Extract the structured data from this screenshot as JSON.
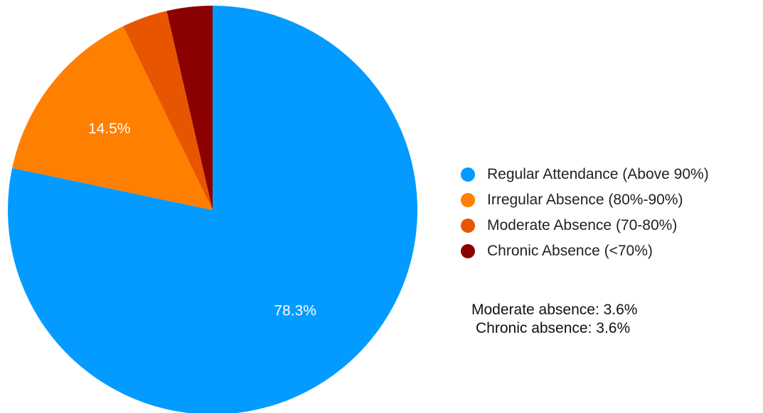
{
  "chart_data": {
    "type": "pie",
    "title": "",
    "slices": [
      {
        "label": "Regular Attendance (Above 90%)",
        "value": 78.3,
        "display": "78.3%",
        "color": "#039BFF"
      },
      {
        "label": "Irregular Absence (80%-90%)",
        "value": 14.5,
        "display": "14.5%",
        "color": "#FF7F00"
      },
      {
        "label": "Moderate Absence (70-80%)",
        "value": 3.6,
        "display": "",
        "color": "#E85500"
      },
      {
        "label": "Chronic Absence (<70%)",
        "value": 3.6,
        "display": "",
        "color": "#8B0000"
      }
    ],
    "start_angle": "12 o'clock",
    "direction": "clockwise",
    "legend_position": "right"
  },
  "legend": {
    "items": [
      {
        "label": "Regular Attendance (Above 90%)",
        "color": "#039BFF"
      },
      {
        "label": "Irregular Absence (80%-90%)",
        "color": "#FF7F00"
      },
      {
        "label": "Moderate Absence (70-80%)",
        "color": "#E85500"
      },
      {
        "label": "Chronic Absence (<70%)",
        "color": "#8B0000"
      }
    ]
  },
  "notes": {
    "moderate": "Moderate absence: 3.6%",
    "chronic": "Chronic absence: 3.6%"
  }
}
